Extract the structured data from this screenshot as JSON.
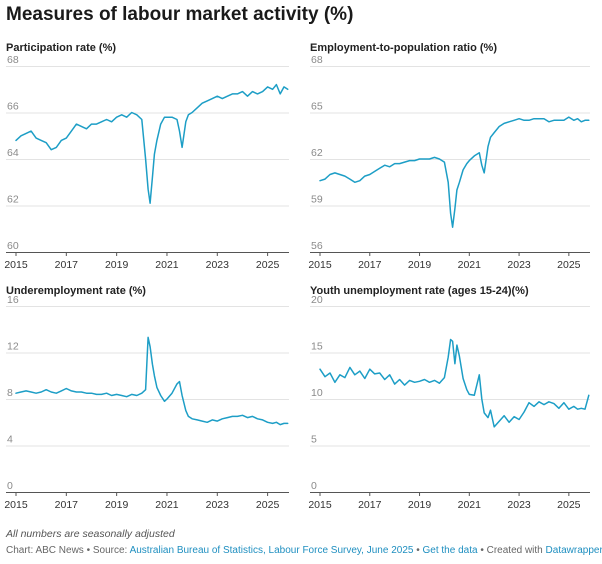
{
  "title": "Measures of labour market activity (%)",
  "note": "All numbers are seasonally adjusted",
  "credit": {
    "chart_by": "Chart: ABC News",
    "sep": " • ",
    "source_prefix": "Source: ",
    "source": "Australian Bureau of Statistics, Labour Force Survey, June 2025",
    "get_data": "Get the data",
    "created": "Created with ",
    "tool": "Datawrapper"
  },
  "colors": {
    "line": "#1d9ec6",
    "grid": "#e3e3e3"
  },
  "chart_data": [
    {
      "type": "line",
      "title": "Participation rate (%)",
      "ylim": [
        60,
        68
      ],
      "yticks": [
        60,
        62,
        64,
        66,
        68
      ],
      "xlim": [
        2015.0,
        2025.85
      ],
      "xticks": [
        2015,
        2017,
        2019,
        2021,
        2023,
        2025
      ],
      "x": [
        2015.0,
        2015.2,
        2015.4,
        2015.6,
        2015.8,
        2016.0,
        2016.2,
        2016.4,
        2016.6,
        2016.8,
        2017.0,
        2017.2,
        2017.4,
        2017.6,
        2017.8,
        2018.0,
        2018.2,
        2018.4,
        2018.6,
        2018.8,
        2019.0,
        2019.2,
        2019.4,
        2019.6,
        2019.8,
        2020.0,
        2020.15,
        2020.25,
        2020.33,
        2020.42,
        2020.5,
        2020.6,
        2020.75,
        2020.9,
        2021.0,
        2021.2,
        2021.4,
        2021.5,
        2021.6,
        2021.75,
        2021.85,
        2022.0,
        2022.2,
        2022.4,
        2022.6,
        2022.8,
        2023.0,
        2023.2,
        2023.4,
        2023.6,
        2023.8,
        2024.0,
        2024.2,
        2024.4,
        2024.6,
        2024.8,
        2025.0,
        2025.2,
        2025.35,
        2025.5,
        2025.65,
        2025.8
      ],
      "values": [
        64.8,
        65.0,
        65.1,
        65.2,
        64.9,
        64.8,
        64.7,
        64.4,
        64.5,
        64.8,
        64.9,
        65.2,
        65.5,
        65.4,
        65.3,
        65.5,
        65.5,
        65.6,
        65.7,
        65.6,
        65.8,
        65.9,
        65.8,
        66.0,
        65.9,
        65.7,
        64.0,
        62.7,
        62.1,
        63.2,
        64.2,
        64.8,
        65.5,
        65.8,
        65.8,
        65.8,
        65.7,
        65.2,
        64.5,
        65.6,
        65.9,
        66.0,
        66.2,
        66.4,
        66.5,
        66.6,
        66.7,
        66.6,
        66.7,
        66.8,
        66.8,
        66.9,
        66.7,
        66.9,
        66.8,
        66.9,
        67.1,
        67.0,
        67.2,
        66.8,
        67.1,
        67.0
      ]
    },
    {
      "type": "line",
      "title": "Employment-to-population ratio (%)",
      "ylim": [
        56,
        68
      ],
      "yticks": [
        56,
        59,
        62,
        65,
        68
      ],
      "xlim": [
        2015.0,
        2025.85
      ],
      "xticks": [
        2015,
        2017,
        2019,
        2021,
        2023,
        2025
      ],
      "x": [
        2015.0,
        2015.2,
        2015.4,
        2015.6,
        2015.8,
        2016.0,
        2016.2,
        2016.4,
        2016.6,
        2016.8,
        2017.0,
        2017.2,
        2017.4,
        2017.6,
        2017.8,
        2018.0,
        2018.2,
        2018.4,
        2018.6,
        2018.8,
        2019.0,
        2019.2,
        2019.4,
        2019.6,
        2019.8,
        2020.0,
        2020.15,
        2020.25,
        2020.33,
        2020.42,
        2020.5,
        2020.6,
        2020.75,
        2020.9,
        2021.0,
        2021.2,
        2021.4,
        2021.5,
        2021.6,
        2021.75,
        2021.85,
        2022.0,
        2022.2,
        2022.4,
        2022.6,
        2022.8,
        2023.0,
        2023.2,
        2023.4,
        2023.6,
        2023.8,
        2024.0,
        2024.2,
        2024.4,
        2024.6,
        2024.8,
        2025.0,
        2025.2,
        2025.35,
        2025.5,
        2025.65,
        2025.8
      ],
      "values": [
        60.6,
        60.7,
        61.0,
        61.1,
        61.0,
        60.9,
        60.7,
        60.5,
        60.6,
        60.9,
        61.0,
        61.2,
        61.4,
        61.6,
        61.5,
        61.7,
        61.7,
        61.8,
        61.9,
        61.9,
        62.0,
        62.0,
        62.0,
        62.1,
        62.0,
        61.8,
        60.5,
        58.5,
        57.6,
        58.8,
        60.0,
        60.5,
        61.3,
        61.7,
        61.9,
        62.2,
        62.4,
        61.6,
        61.1,
        62.8,
        63.4,
        63.7,
        64.1,
        64.3,
        64.4,
        64.5,
        64.6,
        64.5,
        64.5,
        64.6,
        64.6,
        64.6,
        64.4,
        64.5,
        64.5,
        64.5,
        64.7,
        64.5,
        64.6,
        64.4,
        64.5,
        64.5
      ]
    },
    {
      "type": "line",
      "title": "Underemployment rate (%)",
      "ylim": [
        0,
        16
      ],
      "yticks": [
        0,
        4,
        8,
        12,
        16
      ],
      "xlim": [
        2015.0,
        2025.85
      ],
      "xticks": [
        2015,
        2017,
        2019,
        2021,
        2023,
        2025
      ],
      "x": [
        2015.0,
        2015.2,
        2015.4,
        2015.6,
        2015.8,
        2016.0,
        2016.2,
        2016.4,
        2016.6,
        2016.8,
        2017.0,
        2017.2,
        2017.4,
        2017.6,
        2017.8,
        2018.0,
        2018.2,
        2018.4,
        2018.6,
        2018.8,
        2019.0,
        2019.2,
        2019.4,
        2019.6,
        2019.8,
        2020.0,
        2020.15,
        2020.25,
        2020.33,
        2020.42,
        2020.5,
        2020.6,
        2020.75,
        2020.9,
        2021.0,
        2021.2,
        2021.4,
        2021.5,
        2021.6,
        2021.75,
        2021.85,
        2022.0,
        2022.2,
        2022.4,
        2022.6,
        2022.8,
        2023.0,
        2023.2,
        2023.4,
        2023.6,
        2023.8,
        2024.0,
        2024.2,
        2024.4,
        2024.6,
        2024.8,
        2025.0,
        2025.2,
        2025.35,
        2025.5,
        2025.65,
        2025.8
      ],
      "values": [
        8.5,
        8.6,
        8.7,
        8.6,
        8.5,
        8.6,
        8.8,
        8.6,
        8.5,
        8.7,
        8.9,
        8.7,
        8.6,
        8.6,
        8.5,
        8.5,
        8.4,
        8.4,
        8.5,
        8.3,
        8.4,
        8.3,
        8.2,
        8.4,
        8.3,
        8.5,
        8.8,
        13.3,
        12.5,
        11.0,
        10.0,
        9.0,
        8.3,
        7.8,
        8.0,
        8.5,
        9.3,
        9.5,
        8.3,
        7.0,
        6.5,
        6.3,
        6.2,
        6.1,
        6.0,
        6.2,
        6.1,
        6.3,
        6.4,
        6.5,
        6.5,
        6.6,
        6.4,
        6.5,
        6.3,
        6.2,
        6.0,
        5.9,
        6.0,
        5.8,
        5.9,
        5.9
      ]
    },
    {
      "type": "line",
      "title": "Youth unemployment rate (ages 15-24)(%)",
      "ylim": [
        0,
        20
      ],
      "yticks": [
        0,
        5,
        10,
        15,
        20
      ],
      "xlim": [
        2015.0,
        2025.85
      ],
      "xticks": [
        2015,
        2017,
        2019,
        2021,
        2023,
        2025
      ],
      "x": [
        2015.0,
        2015.2,
        2015.4,
        2015.6,
        2015.8,
        2016.0,
        2016.2,
        2016.4,
        2016.6,
        2016.8,
        2017.0,
        2017.2,
        2017.4,
        2017.6,
        2017.8,
        2018.0,
        2018.2,
        2018.4,
        2018.6,
        2018.8,
        2019.0,
        2019.2,
        2019.4,
        2019.6,
        2019.8,
        2020.0,
        2020.15,
        2020.25,
        2020.33,
        2020.42,
        2020.5,
        2020.6,
        2020.75,
        2020.9,
        2021.0,
        2021.2,
        2021.4,
        2021.5,
        2021.6,
        2021.75,
        2021.85,
        2022.0,
        2022.2,
        2022.4,
        2022.6,
        2022.8,
        2023.0,
        2023.2,
        2023.4,
        2023.6,
        2023.8,
        2024.0,
        2024.2,
        2024.4,
        2024.6,
        2024.8,
        2025.0,
        2025.2,
        2025.35,
        2025.5,
        2025.65,
        2025.8
      ],
      "values": [
        13.2,
        12.4,
        12.8,
        11.8,
        12.6,
        12.3,
        13.4,
        12.6,
        13.0,
        12.2,
        13.2,
        12.7,
        12.8,
        12.1,
        12.6,
        11.6,
        12.1,
        11.5,
        12.0,
        11.8,
        11.9,
        12.1,
        11.8,
        12.0,
        11.7,
        12.3,
        14.5,
        16.4,
        16.2,
        13.8,
        15.8,
        14.6,
        12.2,
        11.0,
        10.5,
        10.4,
        12.6,
        10.0,
        8.5,
        8.0,
        8.8,
        7.0,
        7.6,
        8.2,
        7.5,
        8.1,
        7.8,
        8.6,
        9.6,
        9.2,
        9.7,
        9.4,
        9.7,
        9.5,
        9.0,
        9.6,
        8.9,
        9.2,
        8.9,
        9.0,
        8.9,
        10.4
      ]
    }
  ]
}
